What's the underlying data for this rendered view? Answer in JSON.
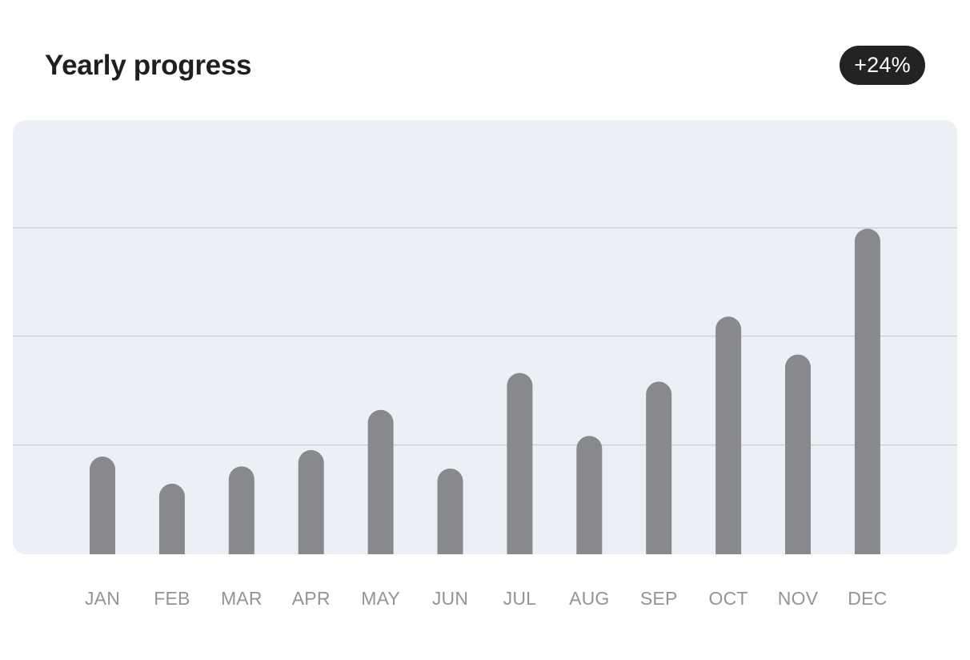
{
  "header": {
    "title": "Yearly progress",
    "badge": "+24%"
  },
  "colors": {
    "badge_bg": "#232325",
    "plot_bg": "#eceff6",
    "gridline": "#cfd1d6",
    "bar": "#88898c",
    "tick_label": "#949494"
  },
  "chart_data": {
    "type": "bar",
    "title": "Yearly progress",
    "xlabel": "",
    "ylabel": "",
    "categories": [
      "JAN",
      "FEB",
      "MAR",
      "APR",
      "MAY",
      "JUN",
      "JUL",
      "AUG",
      "SEP",
      "OCT",
      "NOV",
      "DEC"
    ],
    "values": [
      0.9,
      0.65,
      0.81,
      0.96,
      1.33,
      0.79,
      1.67,
      1.09,
      1.59,
      2.19,
      1.84,
      3.0
    ],
    "ylim": [
      0,
      4
    ],
    "gridlines": [
      1,
      2,
      3
    ],
    "grid": true,
    "legend": "none"
  }
}
